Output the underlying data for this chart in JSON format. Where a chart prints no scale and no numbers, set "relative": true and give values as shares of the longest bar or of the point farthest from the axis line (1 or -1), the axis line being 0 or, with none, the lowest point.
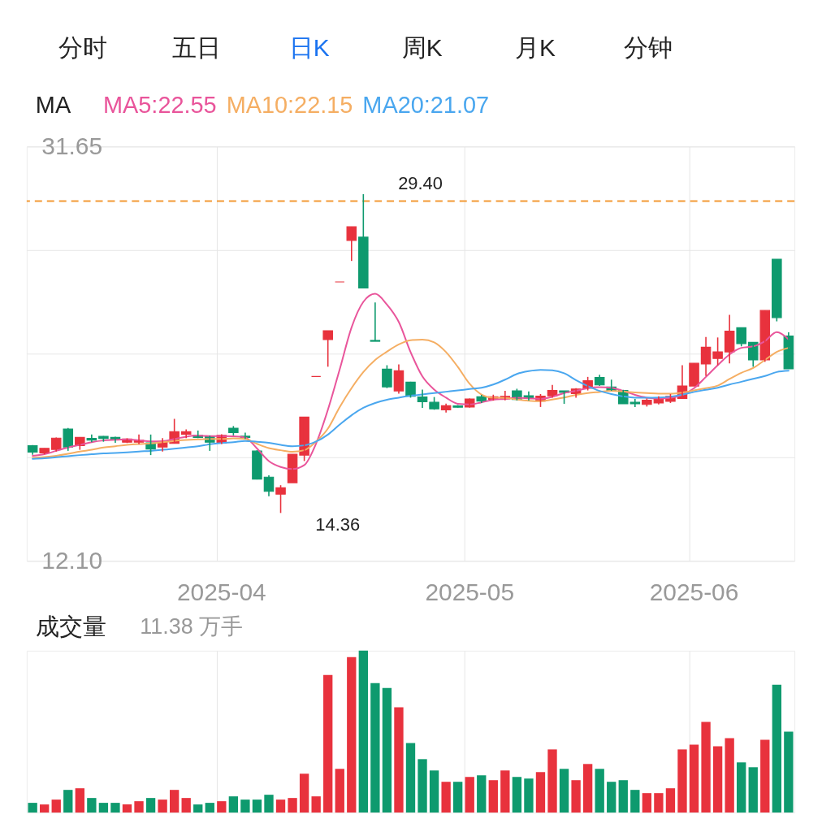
{
  "chart_data": [
    {
      "type": "other",
      "categories": [
        "分时",
        "五日",
        "日K",
        "周K",
        "月K",
        "分钟"
      ],
      "colors": [
        "#222222",
        "#222222",
        "#1a73f0",
        "#222222",
        "#222222",
        "#222222"
      ]
    },
    {
      "type": "candlestick",
      "categories": [
        null,
        null,
        null,
        null,
        null,
        null,
        null,
        null,
        null,
        null,
        null,
        null,
        null,
        null,
        null,
        null,
        "2025-04",
        null,
        null,
        null,
        null,
        null,
        null,
        null,
        null,
        null,
        null,
        null,
        null,
        null,
        null,
        null,
        null,
        null,
        null,
        null,
        null,
        "2025-05",
        null,
        null,
        null,
        null,
        null,
        null,
        null,
        null,
        null,
        null,
        null,
        null,
        null,
        null,
        null,
        null,
        null,
        null,
        "2025-06",
        null,
        null,
        null,
        null,
        null,
        null,
        null,
        null
      ],
      "ohlc": [
        [
          17.53,
          17.56,
          17.1,
          17.23
        ],
        [
          17.19,
          17.41,
          17.13,
          17.41
        ],
        [
          17.36,
          17.92,
          17.26,
          17.89
        ],
        [
          18.32,
          18.37,
          17.29,
          17.47
        ],
        [
          17.54,
          17.94,
          17.34,
          17.92
        ],
        [
          17.88,
          18.06,
          17.7,
          17.8
        ],
        [
          17.97,
          17.99,
          17.72,
          17.87
        ],
        [
          17.92,
          17.96,
          17.67,
          17.83
        ],
        [
          17.7,
          17.88,
          17.66,
          17.85
        ],
        [
          17.7,
          18.06,
          17.6,
          17.79
        ],
        [
          17.67,
          18.06,
          17.09,
          17.38
        ],
        [
          17.47,
          17.89,
          17.26,
          17.72
        ],
        [
          17.64,
          18.8,
          17.64,
          18.19
        ],
        [
          18.08,
          18.3,
          17.89,
          18.19
        ],
        [
          18.02,
          18.25,
          17.89,
          17.92
        ],
        [
          17.99,
          18.01,
          17.29,
          17.7
        ],
        [
          17.66,
          18.07,
          17.61,
          18.02
        ],
        [
          18.36,
          18.46,
          18.02,
          18.15
        ],
        [
          17.98,
          18.15,
          17.85,
          17.92
        ],
        [
          17.28,
          17.32,
          15.94,
          15.96
        ],
        [
          16.05,
          16.14,
          15.15,
          15.38
        ],
        [
          15.25,
          15.67,
          14.36,
          15.55
        ],
        [
          15.79,
          17.13,
          15.79,
          17.13
        ],
        [
          17.09,
          18.88,
          16.81,
          18.88
        ],
        [
          20.8,
          20.8,
          20.8,
          20.8
        ],
        [
          22.54,
          22.96,
          21.26,
          22.96
        ],
        [
          25.26,
          25.26,
          25.26,
          25.26
        ],
        [
          27.22,
          27.86,
          26.25,
          27.86
        ],
        [
          27.37,
          29.4,
          24.98,
          24.98
        ],
        [
          22.5,
          24.29,
          22.46,
          22.46
        ],
        [
          21.14,
          21.33,
          20.25,
          20.31
        ],
        [
          20.12,
          21.37,
          19.99,
          21.07
        ],
        [
          20.53,
          20.55,
          19.8,
          19.87
        ],
        [
          19.83,
          20.18,
          19.32,
          19.61
        ],
        [
          19.58,
          19.83,
          19.23,
          19.27
        ],
        [
          19.23,
          19.52,
          19.1,
          19.42
        ],
        [
          19.41,
          19.45,
          19.33,
          19.35
        ],
        [
          19.36,
          19.76,
          19.33,
          19.74
        ],
        [
          19.84,
          19.93,
          19.55,
          19.64
        ],
        [
          19.72,
          19.94,
          19.66,
          19.84
        ],
        [
          19.74,
          20.12,
          19.67,
          19.86
        ],
        [
          20.12,
          20.22,
          19.67,
          19.71
        ],
        [
          19.89,
          20.09,
          19.66,
          19.79
        ],
        [
          19.64,
          19.97,
          19.36,
          19.87
        ],
        [
          19.89,
          20.4,
          19.8,
          20.14
        ],
        [
          20.12,
          20.12,
          19.51,
          20.05
        ],
        [
          19.99,
          20.25,
          19.8,
          20.21
        ],
        [
          20.25,
          20.78,
          20.14,
          20.6
        ],
        [
          20.75,
          20.88,
          20.35,
          20.4
        ],
        [
          20.3,
          20.65,
          20.12,
          20.14
        ],
        [
          20.14,
          20.17,
          19.51,
          19.51
        ],
        [
          19.58,
          19.74,
          19.36,
          19.51
        ],
        [
          19.48,
          19.76,
          19.38,
          19.68
        ],
        [
          19.55,
          19.86,
          19.48,
          19.79
        ],
        [
          19.63,
          19.97,
          19.55,
          19.86
        ],
        [
          19.76,
          21.33,
          19.74,
          20.35
        ],
        [
          20.35,
          21.42,
          20.35,
          21.42
        ],
        [
          21.39,
          22.66,
          20.82,
          22.18
        ],
        [
          21.65,
          22.64,
          21.33,
          21.96
        ],
        [
          21.96,
          23.71,
          21.42,
          22.94
        ],
        [
          23.1,
          23.1,
          22.22,
          22.35
        ],
        [
          22.41,
          22.41,
          21.26,
          21.58
        ],
        [
          21.58,
          23.91,
          21.49,
          23.91
        ],
        [
          26.33,
          26.33,
          23.4,
          23.58
        ],
        [
          22.71,
          22.88,
          21.16,
          21.16
        ]
      ],
      "colors": [
        "#0e9a6e",
        "#e8323d",
        "#e8323d",
        "#0e9a6e",
        "#e8323d",
        "#0e9a6e",
        "#0e9a6e",
        "#0e9a6e",
        "#e8323d",
        "#e8323d",
        "#0e9a6e",
        "#e8323d",
        "#e8323d",
        "#e8323d",
        "#0e9a6e",
        "#0e9a6e",
        "#e8323d",
        "#0e9a6e",
        "#0e9a6e",
        "#0e9a6e",
        "#0e9a6e",
        "#e8323d",
        "#e8323d",
        "#e8323d",
        "#e8323d",
        "#e8323d",
        "#e8323d",
        "#e8323d",
        "#0e9a6e",
        "#0e9a6e",
        "#0e9a6e",
        "#e8323d",
        "#0e9a6e",
        "#0e9a6e",
        "#0e9a6e",
        "#e8323d",
        "#0e9a6e",
        "#e8323d",
        "#0e9a6e",
        "#e8323d",
        "#e8323d",
        "#0e9a6e",
        "#0e9a6e",
        "#e8323d",
        "#e8323d",
        "#0e9a6e",
        "#e8323d",
        "#e8323d",
        "#0e9a6e",
        "#0e9a6e",
        "#0e9a6e",
        "#0e9a6e",
        "#e8323d",
        "#e8323d",
        "#e8323d",
        "#e8323d",
        "#e8323d",
        "#e8323d",
        "#e8323d",
        "#e8323d",
        "#0e9a6e",
        "#0e9a6e",
        "#e8323d",
        "#0e9a6e",
        "#0e9a6e"
      ],
      "series": [
        {
          "name": "MA5:22.55",
          "type": "line",
          "color": "#e9559b",
          "values": [
            17.06,
            17.13,
            17.29,
            17.45,
            17.57,
            17.7,
            17.78,
            17.81,
            17.83,
            17.79,
            17.74,
            17.75,
            17.85,
            17.96,
            18.01,
            17.99,
            17.99,
            17.98,
            17.92,
            17.4,
            16.81,
            16.53,
            16.43,
            16.62,
            17.64,
            19.23,
            21.14,
            23.11,
            24.32,
            24.7,
            24.19,
            23.37,
            21.95,
            20.8,
            20.18,
            19.8,
            19.51,
            19.48,
            19.58,
            19.7,
            19.74,
            19.8,
            19.77,
            19.74,
            19.84,
            20.02,
            20.12,
            20.25,
            20.3,
            20.27,
            20.12,
            19.93,
            19.8,
            19.76,
            19.79,
            19.93,
            20.25,
            20.78,
            21.33,
            21.84,
            22.15,
            22.22,
            22.47,
            22.89,
            22.55
          ]
        },
        {
          "name": "MA10:22.15",
          "type": "line",
          "color": "#f5ae63",
          "values": [
            16.96,
            17.0,
            17.06,
            17.15,
            17.26,
            17.34,
            17.45,
            17.51,
            17.57,
            17.61,
            17.64,
            17.7,
            17.76,
            17.8,
            17.83,
            17.85,
            17.85,
            17.88,
            17.85,
            17.62,
            17.42,
            17.32,
            17.25,
            17.32,
            17.73,
            18.34,
            19.36,
            20.25,
            21.01,
            21.58,
            21.97,
            22.31,
            22.51,
            22.54,
            22.41,
            21.95,
            21.25,
            20.45,
            19.95,
            19.8,
            19.79,
            19.71,
            19.65,
            19.63,
            19.71,
            19.81,
            19.93,
            20.02,
            20.07,
            20.12,
            20.09,
            20.05,
            20.02,
            19.99,
            19.99,
            20.04,
            20.14,
            20.25,
            20.37,
            20.68,
            20.97,
            21.2,
            21.58,
            21.96,
            22.15
          ]
        },
        {
          "name": "MA20:21.07",
          "type": "line",
          "color": "#4aa7ef",
          "values": [
            16.91,
            16.94,
            16.99,
            17.04,
            17.09,
            17.13,
            17.17,
            17.19,
            17.22,
            17.26,
            17.29,
            17.34,
            17.39,
            17.45,
            17.51,
            17.6,
            17.66,
            17.7,
            17.76,
            17.72,
            17.67,
            17.57,
            17.51,
            17.55,
            17.73,
            18.06,
            18.53,
            18.97,
            19.32,
            19.55,
            19.7,
            19.8,
            19.89,
            19.95,
            20.02,
            20.08,
            20.14,
            20.21,
            20.27,
            20.42,
            20.65,
            20.92,
            21.05,
            21.11,
            21.09,
            20.95,
            20.63,
            20.35,
            20.12,
            19.97,
            19.86,
            19.8,
            19.8,
            19.81,
            19.85,
            19.94,
            20.07,
            20.17,
            20.27,
            20.42,
            20.55,
            20.69,
            20.82,
            21.01,
            21.07
          ]
        }
      ],
      "ylim": [
        12.1,
        31.65
      ],
      "yticks": [
        {
          "value": 12.1,
          "label": "12.10"
        },
        {
          "value": 16.99,
          "label": null
        },
        {
          "value": 21.88,
          "label": null
        },
        {
          "value": 26.76,
          "label": null
        },
        {
          "value": 31.65,
          "label": "31.65"
        }
      ],
      "ref_lines": [
        {
          "axis": "y",
          "value": 29.07,
          "color": "#f39a36",
          "line_style": "dashed"
        }
      ],
      "annotations": [
        "29.40",
        "14.36"
      ],
      "legend_title": "MA",
      "legend": "top left",
      "grid": true
    },
    {
      "type": "bar",
      "title": "成交量",
      "subtitle": "11.38 万手",
      "relative": true,
      "grid": "x",
      "tick_labels": false,
      "categories": [
        null,
        null,
        null,
        null,
        null,
        null,
        null,
        null,
        null,
        null,
        null,
        null,
        null,
        null,
        null,
        null,
        "2025-04",
        null,
        null,
        null,
        null,
        null,
        null,
        null,
        null,
        null,
        null,
        null,
        null,
        null,
        null,
        null,
        null,
        null,
        null,
        null,
        null,
        "2025-05",
        null,
        null,
        null,
        null,
        null,
        null,
        null,
        null,
        null,
        null,
        null,
        null,
        null,
        null,
        null,
        null,
        null,
        null,
        "2025-06",
        null,
        null,
        null,
        null,
        null,
        null,
        null,
        null
      ],
      "values": [
        0.06,
        0.05,
        0.08,
        0.14,
        0.15,
        0.09,
        0.06,
        0.06,
        0.05,
        0.07,
        0.09,
        0.08,
        0.14,
        0.09,
        0.05,
        0.06,
        0.07,
        0.1,
        0.08,
        0.08,
        0.11,
        0.08,
        0.09,
        0.24,
        0.1,
        0.85,
        0.27,
        0.96,
        1,
        0.8,
        0.77,
        0.65,
        0.43,
        0.33,
        0.26,
        0.19,
        0.19,
        0.22,
        0.23,
        0.2,
        0.26,
        0.22,
        0.21,
        0.25,
        0.39,
        0.27,
        0.2,
        0.3,
        0.27,
        0.19,
        0.2,
        0.14,
        0.12,
        0.12,
        0.15,
        0.39,
        0.42,
        0.56,
        0.41,
        0.46,
        0.31,
        0.28,
        0.45,
        0.79,
        0.5
      ],
      "colors": [
        "#0e9a6e",
        "#e8323d",
        "#e8323d",
        "#0e9a6e",
        "#e8323d",
        "#0e9a6e",
        "#0e9a6e",
        "#0e9a6e",
        "#e8323d",
        "#e8323d",
        "#0e9a6e",
        "#e8323d",
        "#e8323d",
        "#e8323d",
        "#0e9a6e",
        "#0e9a6e",
        "#e8323d",
        "#0e9a6e",
        "#0e9a6e",
        "#0e9a6e",
        "#0e9a6e",
        "#e8323d",
        "#e8323d",
        "#e8323d",
        "#e8323d",
        "#e8323d",
        "#e8323d",
        "#e8323d",
        "#0e9a6e",
        "#0e9a6e",
        "#0e9a6e",
        "#e8323d",
        "#0e9a6e",
        "#0e9a6e",
        "#0e9a6e",
        "#e8323d",
        "#0e9a6e",
        "#e8323d",
        "#0e9a6e",
        "#e8323d",
        "#e8323d",
        "#0e9a6e",
        "#0e9a6e",
        "#e8323d",
        "#e8323d",
        "#0e9a6e",
        "#e8323d",
        "#e8323d",
        "#0e9a6e",
        "#0e9a6e",
        "#0e9a6e",
        "#0e9a6e",
        "#e8323d",
        "#e8323d",
        "#e8323d",
        "#e8323d",
        "#e8323d",
        "#e8323d",
        "#e8323d",
        "#e8323d",
        "#0e9a6e",
        "#0e9a6e",
        "#e8323d",
        "#0e9a6e",
        "#0e9a6e"
      ]
    }
  ]
}
